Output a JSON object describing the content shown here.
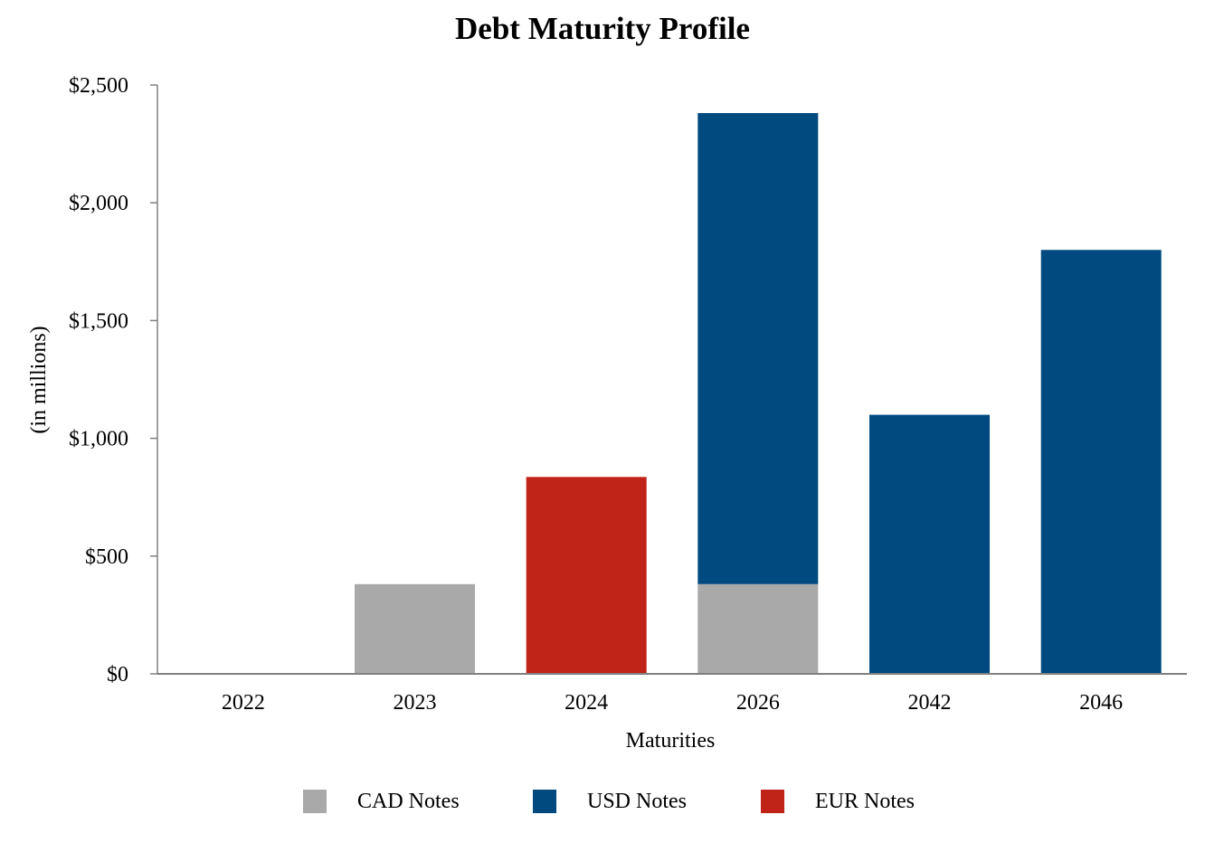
{
  "chart_data": {
    "type": "bar",
    "stacked": true,
    "title": "Debt Maturity Profile",
    "xlabel": "Maturities",
    "ylabel": "(in millions)",
    "categories": [
      "2022",
      "2023",
      "2024",
      "2026",
      "2042",
      "2046"
    ],
    "ylim": [
      0,
      2500
    ],
    "yticks": [
      0,
      500,
      1000,
      1500,
      2000,
      2500
    ],
    "ytick_labels": [
      "$0",
      "$500",
      "$1,000",
      "$1,500",
      "$2,000",
      "$2,500"
    ],
    "series": [
      {
        "name": "CAD Notes",
        "color": "#a9a9a9",
        "values": [
          0,
          381,
          0,
          381,
          0,
          0
        ]
      },
      {
        "name": "USD Notes",
        "color": "#004a7f",
        "values": [
          0,
          0,
          0,
          2000,
          1100,
          1800
        ]
      },
      {
        "name": "EUR Notes",
        "color": "#c02318",
        "values": [
          0,
          0,
          836,
          0,
          0,
          0
        ]
      }
    ],
    "grid": false,
    "legend_position": "bottom"
  }
}
